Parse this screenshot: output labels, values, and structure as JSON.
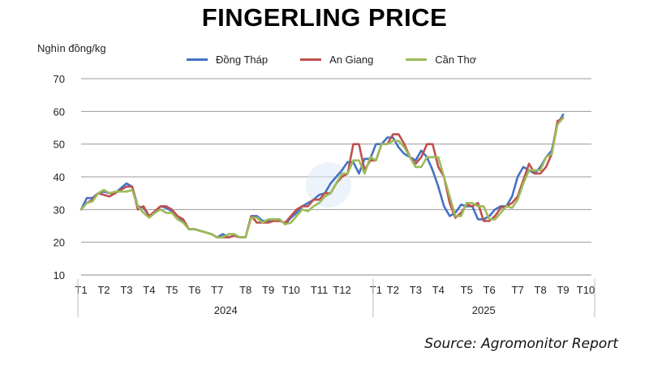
{
  "chart_data": {
    "type": "line",
    "title": "FINGERLING PRICE",
    "ylabel": "Nghìn đồng/kg",
    "xlabel": "",
    "ylim": [
      10,
      70
    ],
    "yticks": [
      10,
      20,
      30,
      40,
      50,
      60,
      70
    ],
    "grid": true,
    "legend_position": "top",
    "month_labels": [
      {
        "label": "T1",
        "x": 0
      },
      {
        "label": "T2",
        "x": 4
      },
      {
        "label": "T3",
        "x": 8
      },
      {
        "label": "T4",
        "x": 12
      },
      {
        "label": "T5",
        "x": 16
      },
      {
        "label": "T6",
        "x": 20
      },
      {
        "label": "T7",
        "x": 24
      },
      {
        "label": "T8",
        "x": 29
      },
      {
        "label": "T9",
        "x": 33
      },
      {
        "label": "T10",
        "x": 37
      },
      {
        "label": "T11",
        "x": 42
      },
      {
        "label": "T12",
        "x": 46
      },
      {
        "label": "T1",
        "x": 52
      },
      {
        "label": "T2",
        "x": 55
      },
      {
        "label": "T3",
        "x": 59
      },
      {
        "label": "T4",
        "x": 63
      },
      {
        "label": "T5",
        "x": 68
      },
      {
        "label": "T6",
        "x": 72
      },
      {
        "label": "T7",
        "x": 77
      },
      {
        "label": "T8",
        "x": 81
      },
      {
        "label": "T9",
        "x": 85
      },
      {
        "label": "T10",
        "x": 89
      }
    ],
    "years": [
      {
        "label": "2024",
        "from": 0,
        "to": 51
      },
      {
        "label": "2025",
        "from": 52,
        "to": 90
      }
    ],
    "week_count": 91,
    "series": [
      {
        "name": "Đồng Tháp",
        "color": "#4472C4",
        "values": [
          30,
          33.5,
          33.5,
          35,
          35.5,
          35,
          35,
          36.5,
          38,
          37,
          31,
          30.5,
          28,
          29,
          31,
          30.5,
          29.5,
          28,
          26.5,
          24,
          24,
          23.5,
          23,
          22.5,
          21.5,
          22.5,
          21.5,
          22,
          21.5,
          21.5,
          28,
          28,
          26.5,
          26.5,
          27,
          27,
          25.5,
          27.5,
          29,
          31,
          32,
          33,
          34.5,
          35,
          38,
          40,
          42,
          44.5,
          44.5,
          41,
          45.5,
          45.5,
          50,
          50,
          52,
          52,
          49,
          47,
          46,
          45,
          48,
          46,
          42,
          37,
          31,
          28,
          29,
          31.5,
          31,
          31,
          27,
          27,
          28,
          30,
          31,
          31,
          34,
          40,
          43,
          42,
          41,
          43,
          46,
          48,
          56,
          59
        ]
      },
      {
        "name": "An Giang",
        "color": "#C0504D",
        "values": [
          30,
          32,
          33,
          35,
          34.5,
          34,
          35,
          36,
          37,
          37,
          30,
          31,
          28,
          29.5,
          31,
          31,
          30,
          28,
          27,
          24,
          24,
          23.5,
          23,
          22.5,
          21.5,
          21.5,
          21.5,
          22,
          21.5,
          21.5,
          28,
          26,
          26,
          26,
          26.5,
          26.5,
          26,
          28,
          30,
          31,
          31,
          33,
          33,
          35,
          35,
          38,
          40,
          41,
          50,
          50,
          42,
          45,
          45,
          50,
          50,
          53,
          53,
          50,
          46,
          44,
          46,
          50,
          50,
          43,
          40,
          32,
          27.5,
          29,
          31.5,
          31,
          32,
          26.5,
          26.5,
          28,
          30.5,
          31,
          32,
          34,
          39,
          44,
          41,
          41,
          43,
          47,
          57,
          58
        ]
      },
      {
        "name": "Cần Thơ",
        "color": "#9BBB59",
        "values": [
          30,
          32,
          32.5,
          35,
          36,
          35,
          35.5,
          35.5,
          35.5,
          36,
          31,
          29,
          27.5,
          29,
          30,
          29,
          29,
          27,
          26,
          24,
          24,
          23.5,
          23,
          22.5,
          21.5,
          21.5,
          22.5,
          22.5,
          21.5,
          21.5,
          27.5,
          27.5,
          26,
          27,
          27,
          27,
          25.5,
          26,
          28,
          30,
          29.5,
          31,
          32,
          34,
          35,
          38,
          41,
          41,
          45,
          45,
          41,
          46,
          45,
          50,
          50,
          51,
          51,
          49,
          46,
          43,
          43,
          46,
          46,
          46,
          40,
          34,
          28,
          28,
          32,
          32,
          31,
          31,
          27,
          27,
          29,
          31,
          30.5,
          33,
          38,
          42,
          42,
          42,
          46,
          47,
          56,
          58
        ]
      }
    ]
  },
  "source_note": "Source: Agromonitor Report"
}
